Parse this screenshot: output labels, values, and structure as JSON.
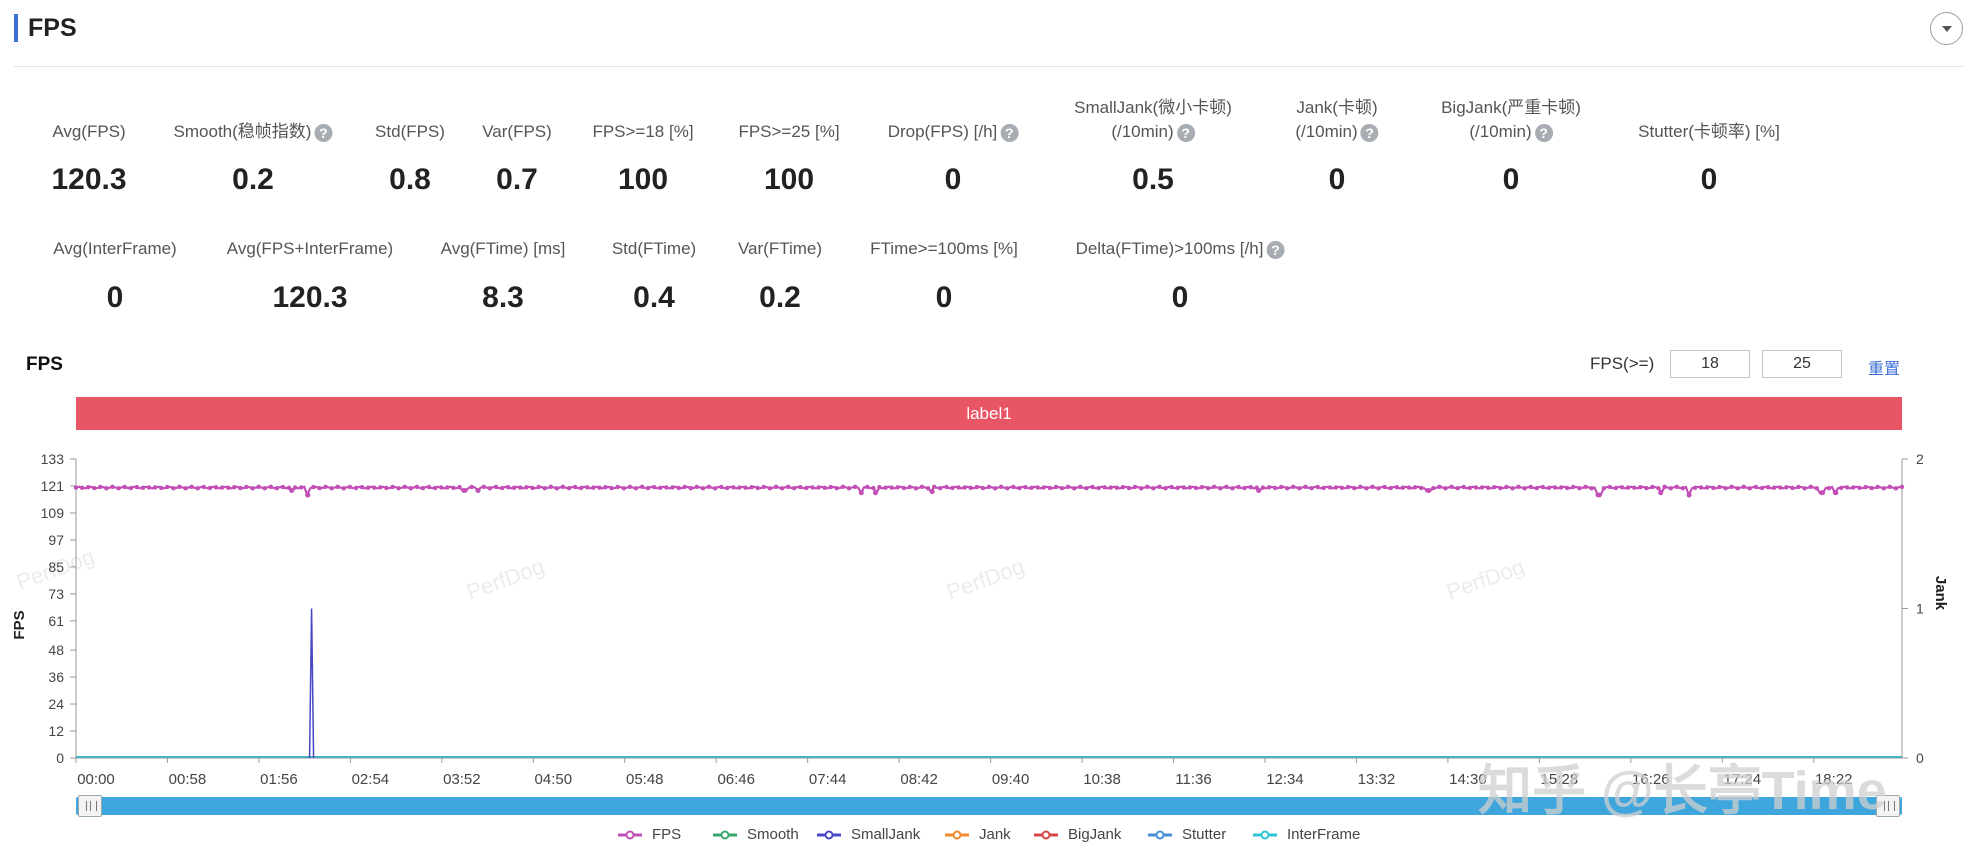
{
  "header": {
    "title": "FPS"
  },
  "stats_row1": [
    {
      "label": "Avg(FPS)",
      "value": "120.3",
      "help": false,
      "label2": ""
    },
    {
      "label": "Smooth(稳帧指数)",
      "value": "0.2",
      "help": true,
      "label2": ""
    },
    {
      "label": "Std(FPS)",
      "value": "0.8",
      "help": false,
      "label2": ""
    },
    {
      "label": "Var(FPS)",
      "value": "0.7",
      "help": false,
      "label2": ""
    },
    {
      "label": "FPS>=18 [%]",
      "value": "100",
      "help": false,
      "label2": ""
    },
    {
      "label": "FPS>=25 [%]",
      "value": "100",
      "help": false,
      "label2": ""
    },
    {
      "label": "Drop(FPS) [/h]",
      "value": "0",
      "help": true,
      "label2": ""
    },
    {
      "label": "SmallJank(微小卡顿)",
      "label2": "(/10min)",
      "value": "0.5",
      "help": true
    },
    {
      "label": "Jank(卡顿)",
      "label2": "(/10min)",
      "value": "0",
      "help": true
    },
    {
      "label": "BigJank(严重卡顿)",
      "label2": "(/10min)",
      "value": "0",
      "help": true
    },
    {
      "label": "Stutter(卡顿率) [%]",
      "value": "0",
      "help": false,
      "label2": ""
    }
  ],
  "stats_row2": [
    {
      "label": "Avg(InterFrame)",
      "value": "0",
      "help": false
    },
    {
      "label": "Avg(FPS+InterFrame)",
      "value": "120.3",
      "help": false
    },
    {
      "label": "Avg(FTime) [ms]",
      "value": "8.3",
      "help": false
    },
    {
      "label": "Std(FTime)",
      "value": "0.4",
      "help": false
    },
    {
      "label": "Var(FTime)",
      "value": "0.2",
      "help": false
    },
    {
      "label": "FTime>=100ms [%]",
      "value": "0",
      "help": false
    },
    {
      "label": "Delta(FTime)>100ms [/h]",
      "value": "0",
      "help": true
    }
  ],
  "help_glyph": "?",
  "chart_header": {
    "title": "FPS",
    "threshold_label": "FPS(>=)",
    "threshold_1": "18",
    "threshold_2": "25",
    "reset_label": "重置"
  },
  "label_band": "label1",
  "watermark": "PerfDog",
  "zhihu_watermark": "知乎 @长亭Time",
  "chart_data": {
    "type": "line",
    "xlabel": "",
    "ylabel": "FPS",
    "y2label": "Jank",
    "ylim": [
      0,
      133
    ],
    "y2lim": [
      0,
      2
    ],
    "yticks": [
      "0",
      "12",
      "24",
      "36",
      "48",
      "61",
      "73",
      "85",
      "97",
      "109",
      "121",
      "133"
    ],
    "y2ticks": [
      "0",
      "1",
      "2"
    ],
    "x_tick_labels": [
      "00:00",
      "00:58",
      "01:56",
      "02:54",
      "03:52",
      "04:50",
      "05:48",
      "06:46",
      "07:44",
      "08:42",
      "09:40",
      "10:38",
      "11:36",
      "12:34",
      "13:32",
      "14:30",
      "15:28",
      "16:26",
      "17:24",
      "18:22"
    ],
    "series": [
      {
        "name": "FPS",
        "color": "#c24fb6",
        "axis": "left",
        "baseline": 120.3,
        "dips": [
          [
            2.45,
            117
          ],
          [
            2.28,
            119
          ],
          [
            4.1,
            119
          ],
          [
            4.25,
            119
          ],
          [
            8.3,
            118
          ],
          [
            8.45,
            118
          ],
          [
            9.05,
            118.5
          ],
          [
            12.5,
            119
          ],
          [
            14.3,
            119
          ],
          [
            16.1,
            117
          ],
          [
            16.75,
            118
          ],
          [
            17.05,
            117
          ],
          [
            18.45,
            118
          ],
          [
            18.6,
            118
          ]
        ]
      },
      {
        "name": "Smooth",
        "color": "#3aa76d",
        "axis": "left",
        "values": "zero"
      },
      {
        "name": "SmallJank",
        "color": "#4a47c7",
        "axis": "right",
        "spikes": [
          [
            2.49,
            1
          ]
        ]
      },
      {
        "name": "Jank",
        "color": "#f08a2c",
        "axis": "right",
        "values": "zero"
      },
      {
        "name": "BigJank",
        "color": "#d64545",
        "axis": "right",
        "values": "zero"
      },
      {
        "name": "Stutter",
        "color": "#4a8fd6",
        "axis": "left",
        "values": "zero"
      },
      {
        "name": "InterFrame",
        "color": "#2ec4d6",
        "axis": "left",
        "values": "zero"
      }
    ],
    "duration_min": 19.3,
    "legend_position": "bottom",
    "grid": false
  }
}
